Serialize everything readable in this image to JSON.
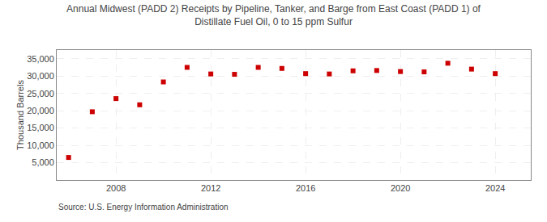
{
  "chart_data": {
    "type": "scatter",
    "title": "Annual Midwest (PADD 2) Receipts by Pipeline, Tanker, and Barge from East Coast (PADD 1) of\nDistillate Fuel Oil, 0 to 15 ppm Sulfur",
    "ylabel": "Thousand Barrels",
    "source": "Source: U.S. Energy Information Administration",
    "x": [
      2006,
      2007,
      2008,
      2009,
      2010,
      2011,
      2012,
      2013,
      2014,
      2015,
      2016,
      2017,
      2018,
      2019,
      2020,
      2021,
      2022,
      2023,
      2024
    ],
    "values": [
      6500,
      19700,
      23500,
      21700,
      28300,
      32500,
      30600,
      30500,
      32500,
      32200,
      30700,
      30600,
      31500,
      31600,
      31300,
      31200,
      33700,
      32000,
      30700
    ],
    "color": "#cc0000",
    "marker": "square",
    "grid": true,
    "xlim": [
      2005.5,
      2025.5
    ],
    "xticks": [
      2008,
      2012,
      2016,
      2020,
      2024
    ],
    "ylim": [
      0,
      37500
    ],
    "yticks": [
      {
        "value": 5000,
        "label": "5,000"
      },
      {
        "value": 10000,
        "label": "10,000"
      },
      {
        "value": 15000,
        "label": "15,000"
      },
      {
        "value": 20000,
        "label": "20,000"
      },
      {
        "value": 25000,
        "label": "25,000"
      },
      {
        "value": 30000,
        "label": "30,000"
      },
      {
        "value": 35000,
        "label": "35,000"
      }
    ]
  }
}
